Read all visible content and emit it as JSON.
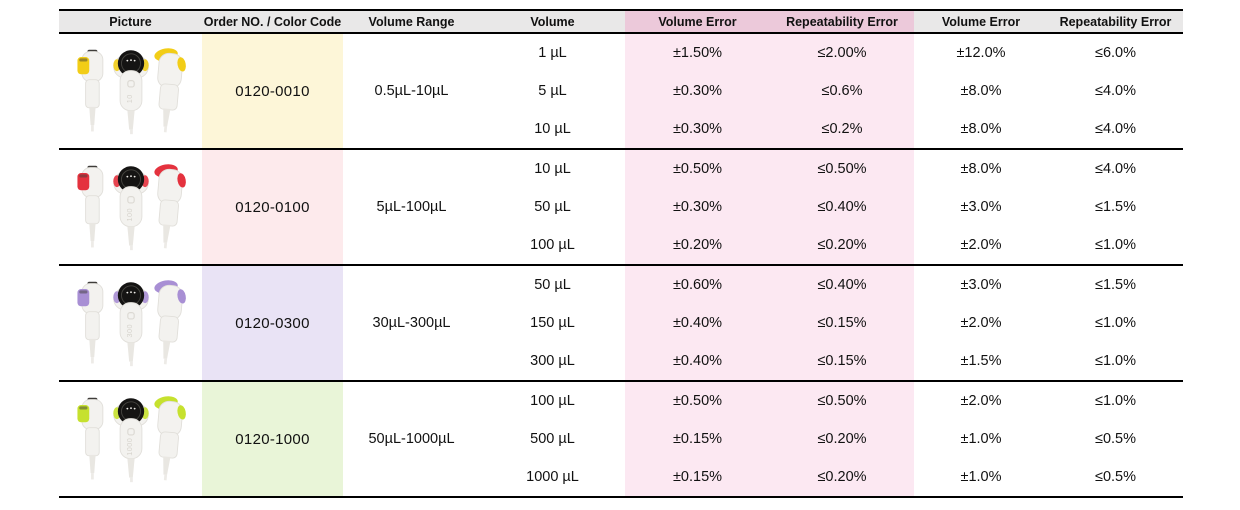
{
  "table": {
    "columns": [
      {
        "label": "Picture",
        "highlight": false
      },
      {
        "label": "Order NO. / Color Code",
        "highlight": false
      },
      {
        "label": "Volume Range",
        "highlight": false
      },
      {
        "label": "Volume",
        "highlight": false
      },
      {
        "label": "Volume Error",
        "highlight": true
      },
      {
        "label": "Repeatability Error",
        "highlight": true
      },
      {
        "label": "Volume Error",
        "highlight": false
      },
      {
        "label": "Repeatability Error",
        "highlight": false
      }
    ],
    "groups": [
      {
        "order_code": "0120-0010",
        "volume_range": "0.5µL-10µL",
        "color_code_bg": "#fdf6d8",
        "accent_color": "#f2cd17",
        "device_label": "10",
        "picture_icon": "pipette-three-views-icon",
        "rows": [
          {
            "volume": "1 µL",
            "volume_error_1": "±1.50%",
            "repeatability_error_1": "≤2.00%",
            "volume_error_2": "±12.0%",
            "repeatability_error_2": "≤6.0%"
          },
          {
            "volume": "5 µL",
            "volume_error_1": "±0.30%",
            "repeatability_error_1": "≤0.6%",
            "volume_error_2": "±8.0%",
            "repeatability_error_2": "≤4.0%"
          },
          {
            "volume": "10 µL",
            "volume_error_1": "±0.30%",
            "repeatability_error_1": "≤0.2%",
            "volume_error_2": "±8.0%",
            "repeatability_error_2": "≤4.0%"
          }
        ]
      },
      {
        "order_code": "0120-0100",
        "volume_range": "5µL-100µL",
        "color_code_bg": "#fdeaec",
        "accent_color": "#e4323e",
        "device_label": "100",
        "picture_icon": "pipette-three-views-icon",
        "rows": [
          {
            "volume": "10 µL",
            "volume_error_1": "±0.50%",
            "repeatability_error_1": "≤0.50%",
            "volume_error_2": "±8.0%",
            "repeatability_error_2": "≤4.0%"
          },
          {
            "volume": "50 µL",
            "volume_error_1": "±0.30%",
            "repeatability_error_1": "≤0.40%",
            "volume_error_2": "±3.0%",
            "repeatability_error_2": "≤1.5%"
          },
          {
            "volume": "100 µL",
            "volume_error_1": "±0.20%",
            "repeatability_error_1": "≤0.20%",
            "volume_error_2": "±2.0%",
            "repeatability_error_2": "≤1.0%"
          }
        ]
      },
      {
        "order_code": "0120-0300",
        "volume_range": "30µL-300µL",
        "color_code_bg": "#e9e3f5",
        "accent_color": "#a88fd4",
        "device_label": "300",
        "picture_icon": "pipette-three-views-icon",
        "rows": [
          {
            "volume": "50 µL",
            "volume_error_1": "±0.60%",
            "repeatability_error_1": "≤0.40%",
            "volume_error_2": "±3.0%",
            "repeatability_error_2": "≤1.5%"
          },
          {
            "volume": "150 µL",
            "volume_error_1": "±0.40%",
            "repeatability_error_1": "≤0.15%",
            "volume_error_2": "±2.0%",
            "repeatability_error_2": "≤1.0%"
          },
          {
            "volume": "300 µL",
            "volume_error_1": "±0.40%",
            "repeatability_error_1": "≤0.15%",
            "volume_error_2": "±1.5%",
            "repeatability_error_2": "≤1.0%"
          }
        ]
      },
      {
        "order_code": "0120-1000",
        "volume_range": "50µL-1000µL",
        "color_code_bg": "#e9f5d8",
        "accent_color": "#c6e12e",
        "device_label": "1000",
        "picture_icon": "pipette-three-views-icon",
        "rows": [
          {
            "volume": "100 µL",
            "volume_error_1": "±0.50%",
            "repeatability_error_1": "≤0.50%",
            "volume_error_2": "±2.0%",
            "repeatability_error_2": "≤1.0%"
          },
          {
            "volume": "500 µL",
            "volume_error_1": "±0.15%",
            "repeatability_error_1": "≤0.20%",
            "volume_error_2": "±1.0%",
            "repeatability_error_2": "≤0.5%"
          },
          {
            "volume": "1000 µL",
            "volume_error_1": "±0.15%",
            "repeatability_error_1": "≤0.20%",
            "volume_error_2": "±1.0%",
            "repeatability_error_2": "≤0.5%"
          }
        ]
      }
    ],
    "colors": {
      "header_bg": "#e9e8e8",
      "header_highlight_bg": "#ecc9da",
      "body_highlight_bg": "#fce8f2",
      "rule": "#000000",
      "device_body": "#f3f2ef",
      "device_display": "#151413"
    }
  }
}
